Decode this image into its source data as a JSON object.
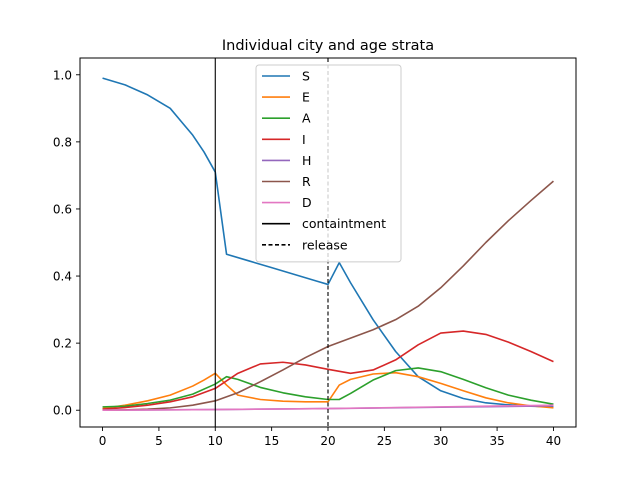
{
  "chart_data": {
    "type": "line",
    "title": "Individual city and age strata",
    "xlabel": "",
    "ylabel": "",
    "xlim": [
      -2,
      42
    ],
    "ylim": [
      -0.05,
      1.05
    ],
    "xticks": [
      0,
      5,
      10,
      15,
      20,
      25,
      30,
      35,
      40
    ],
    "yticks": [
      0.0,
      0.2,
      0.4,
      0.6,
      0.8,
      1.0
    ],
    "xtick_labels": [
      "0",
      "5",
      "10",
      "15",
      "20",
      "25",
      "30",
      "35",
      "40"
    ],
    "ytick_labels": [
      "0.0",
      "0.2",
      "0.4",
      "0.6",
      "0.8",
      "1.0"
    ],
    "grid": false,
    "legend_position": "top-center",
    "series": [
      {
        "name": "S",
        "color": "#1f77b4",
        "dash": "solid",
        "points": [
          [
            0,
            0.99
          ],
          [
            2,
            0.97
          ],
          [
            4,
            0.94
          ],
          [
            6,
            0.9
          ],
          [
            7,
            0.86
          ],
          [
            8,
            0.82
          ],
          [
            9,
            0.77
          ],
          [
            10,
            0.71
          ],
          [
            11,
            0.465
          ],
          [
            13,
            0.445
          ],
          [
            15,
            0.425
          ],
          [
            17,
            0.405
          ],
          [
            19,
            0.385
          ],
          [
            20,
            0.375
          ],
          [
            21,
            0.44
          ],
          [
            22,
            0.38
          ],
          [
            24,
            0.27
          ],
          [
            26,
            0.175
          ],
          [
            28,
            0.1
          ],
          [
            30,
            0.058
          ],
          [
            32,
            0.035
          ],
          [
            34,
            0.022
          ],
          [
            36,
            0.016
          ],
          [
            38,
            0.012
          ],
          [
            40,
            0.01
          ]
        ]
      },
      {
        "name": "E",
        "color": "#ff7f0e",
        "dash": "solid",
        "points": [
          [
            0,
            0.005
          ],
          [
            2,
            0.015
          ],
          [
            4,
            0.028
          ],
          [
            6,
            0.045
          ],
          [
            8,
            0.072
          ],
          [
            9,
            0.09
          ],
          [
            10,
            0.11
          ],
          [
            11,
            0.075
          ],
          [
            12,
            0.045
          ],
          [
            14,
            0.032
          ],
          [
            16,
            0.027
          ],
          [
            18,
            0.025
          ],
          [
            20,
            0.025
          ],
          [
            21,
            0.075
          ],
          [
            22,
            0.092
          ],
          [
            24,
            0.108
          ],
          [
            26,
            0.112
          ],
          [
            28,
            0.1
          ],
          [
            30,
            0.08
          ],
          [
            32,
            0.058
          ],
          [
            34,
            0.037
          ],
          [
            36,
            0.022
          ],
          [
            38,
            0.013
          ],
          [
            40,
            0.007
          ]
        ]
      },
      {
        "name": "A",
        "color": "#2ca02c",
        "dash": "solid",
        "points": [
          [
            0,
            0.01
          ],
          [
            2,
            0.012
          ],
          [
            4,
            0.02
          ],
          [
            6,
            0.03
          ],
          [
            8,
            0.048
          ],
          [
            10,
            0.078
          ],
          [
            11,
            0.1
          ],
          [
            12,
            0.092
          ],
          [
            14,
            0.068
          ],
          [
            16,
            0.052
          ],
          [
            18,
            0.04
          ],
          [
            20,
            0.032
          ],
          [
            21,
            0.032
          ],
          [
            22,
            0.05
          ],
          [
            24,
            0.09
          ],
          [
            26,
            0.118
          ],
          [
            28,
            0.126
          ],
          [
            30,
            0.115
          ],
          [
            32,
            0.092
          ],
          [
            34,
            0.067
          ],
          [
            36,
            0.045
          ],
          [
            38,
            0.03
          ],
          [
            40,
            0.018
          ]
        ]
      },
      {
        "name": "I",
        "color": "#d62728",
        "dash": "solid",
        "points": [
          [
            0,
            0.003
          ],
          [
            2,
            0.008
          ],
          [
            4,
            0.015
          ],
          [
            6,
            0.025
          ],
          [
            8,
            0.04
          ],
          [
            10,
            0.065
          ],
          [
            12,
            0.11
          ],
          [
            14,
            0.138
          ],
          [
            16,
            0.143
          ],
          [
            18,
            0.135
          ],
          [
            20,
            0.122
          ],
          [
            22,
            0.11
          ],
          [
            24,
            0.12
          ],
          [
            26,
            0.15
          ],
          [
            28,
            0.195
          ],
          [
            30,
            0.23
          ],
          [
            32,
            0.236
          ],
          [
            34,
            0.226
          ],
          [
            36,
            0.203
          ],
          [
            38,
            0.175
          ],
          [
            40,
            0.145
          ]
        ]
      },
      {
        "name": "H",
        "color": "#9467bd",
        "dash": "solid",
        "points": [
          [
            0,
            0.0
          ],
          [
            10,
            0.002
          ],
          [
            20,
            0.005
          ],
          [
            30,
            0.009
          ],
          [
            40,
            0.013
          ]
        ]
      },
      {
        "name": "R",
        "color": "#8c564b",
        "dash": "solid",
        "points": [
          [
            0,
            0.0
          ],
          [
            2,
            0.001
          ],
          [
            4,
            0.003
          ],
          [
            6,
            0.007
          ],
          [
            8,
            0.015
          ],
          [
            10,
            0.028
          ],
          [
            12,
            0.052
          ],
          [
            14,
            0.085
          ],
          [
            16,
            0.12
          ],
          [
            18,
            0.157
          ],
          [
            20,
            0.19
          ],
          [
            22,
            0.215
          ],
          [
            24,
            0.24
          ],
          [
            26,
            0.27
          ],
          [
            28,
            0.31
          ],
          [
            30,
            0.365
          ],
          [
            32,
            0.43
          ],
          [
            34,
            0.5
          ],
          [
            36,
            0.565
          ],
          [
            38,
            0.625
          ],
          [
            40,
            0.683
          ]
        ]
      },
      {
        "name": "D",
        "color": "#e377c2",
        "dash": "solid",
        "points": [
          [
            0,
            0.0
          ],
          [
            10,
            0.002
          ],
          [
            20,
            0.005
          ],
          [
            30,
            0.01
          ],
          [
            40,
            0.015
          ]
        ]
      }
    ],
    "vertical_lines": [
      {
        "name": "containtment",
        "x": 10,
        "color": "#000000",
        "dash": "solid"
      },
      {
        "name": "release",
        "x": 20,
        "color": "#000000",
        "dash": "dashed"
      }
    ]
  }
}
